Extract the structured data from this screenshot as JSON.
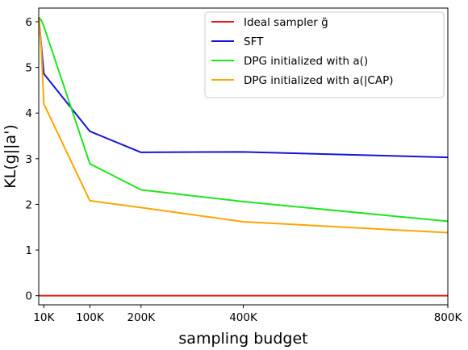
{
  "chart_data": {
    "type": "line",
    "xlabel": "sampling budget",
    "ylabel": "KL(g||a')",
    "x_ticks": [
      {
        "value": 10000,
        "label": "10K"
      },
      {
        "value": 100000,
        "label": "100K"
      },
      {
        "value": 200000,
        "label": "200K"
      },
      {
        "value": 400000,
        "label": "400K"
      },
      {
        "value": 800000,
        "label": "800K"
      }
    ],
    "y_ticks": [
      0,
      1,
      2,
      3,
      4,
      5,
      6
    ],
    "xlim": [
      0,
      800000
    ],
    "ylim": [
      -0.2,
      6.3
    ],
    "grid": false,
    "legend_position": "top-right",
    "series": [
      {
        "name": "Ideal sampler g̃",
        "color": "#e31a1c",
        "x": [
          0,
          800000
        ],
        "y": [
          0,
          0
        ]
      },
      {
        "name": "SFT",
        "color": "#1515d6",
        "x": [
          0,
          10000,
          100000,
          200000,
          400000,
          800000
        ],
        "y": [
          6.1,
          4.86,
          3.6,
          3.14,
          3.15,
          3.03
        ]
      },
      {
        "name": "DPG initialized with a()",
        "color": "#1ee61e",
        "x": [
          0,
          5000,
          10000,
          100000,
          200000,
          400000,
          800000
        ],
        "y": [
          6.1,
          6.03,
          5.9,
          2.89,
          2.32,
          2.06,
          1.63
        ]
      },
      {
        "name": "DPG initialized with a(|CAP)",
        "color": "#ffa500",
        "x": [
          0,
          5000,
          10000,
          100000,
          200000,
          400000,
          800000
        ],
        "y": [
          6.1,
          5.4,
          4.2,
          2.08,
          1.93,
          1.62,
          1.38
        ]
      }
    ]
  }
}
